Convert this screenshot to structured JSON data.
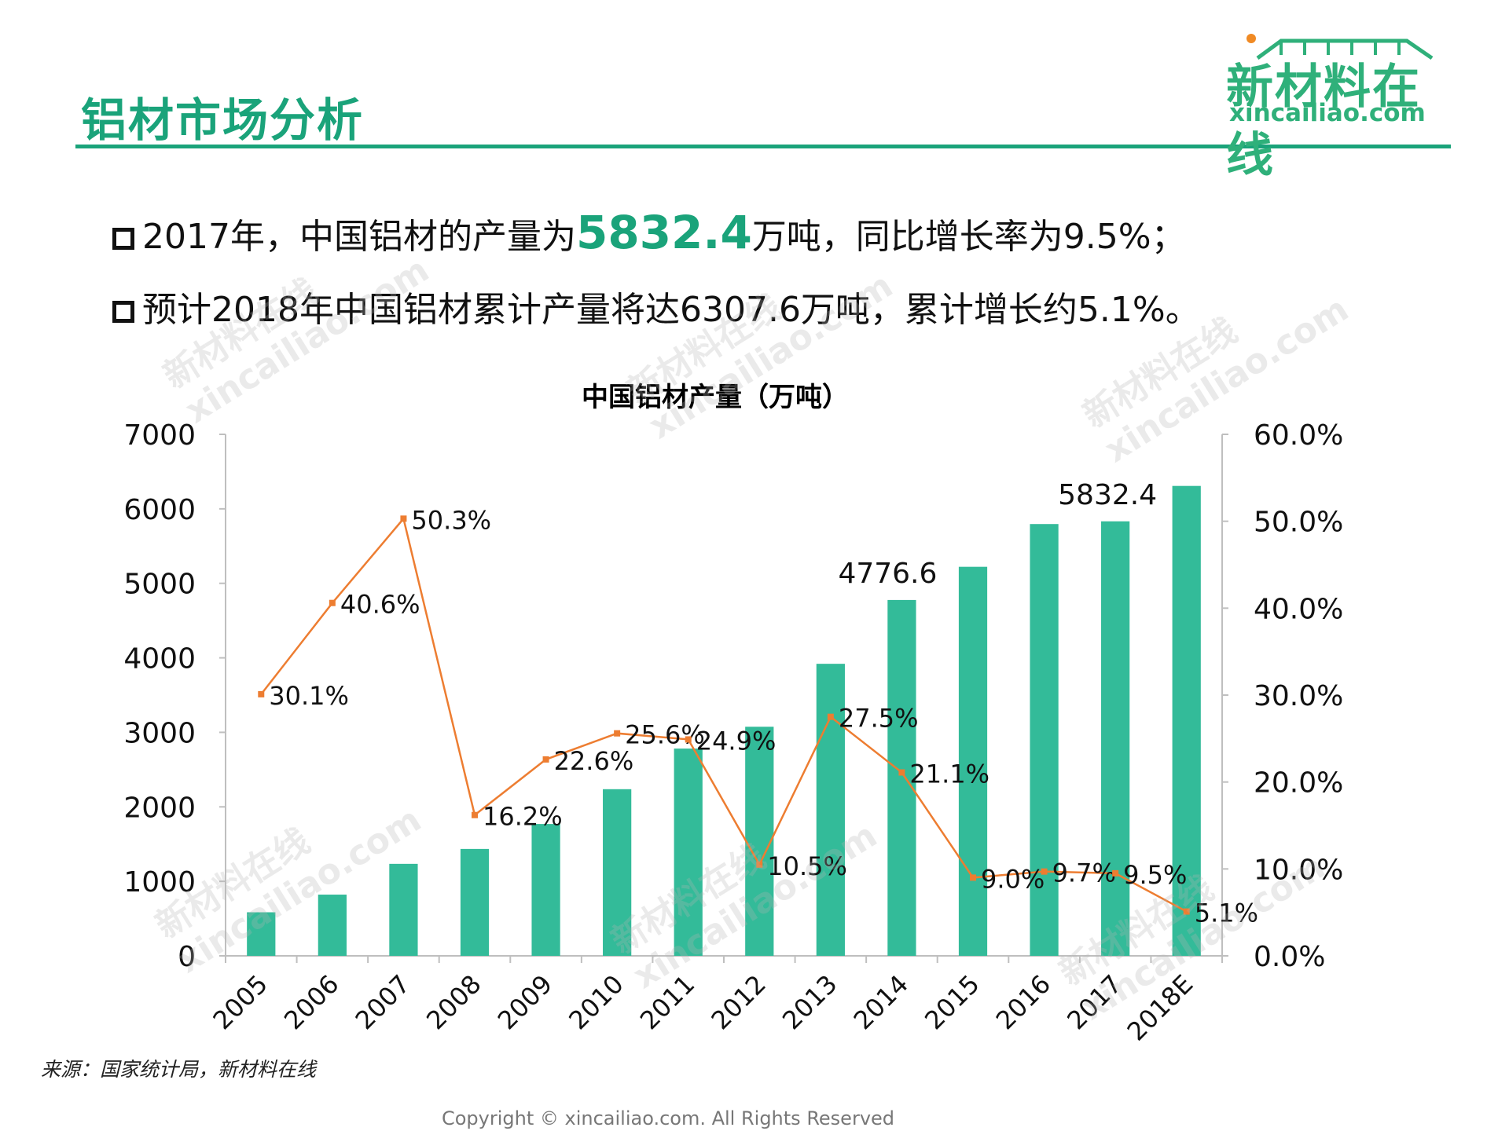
{
  "header": {
    "title": "铝材市场分析",
    "logo_name": "新材料在线",
    "logo_url": "xincailiao.com"
  },
  "bullets": [
    {
      "prefix": "2017年，中国铝材的产量为",
      "highlight": "5832.4",
      "suffix": "万吨，同比增长率为9.5%；"
    },
    {
      "prefix": "预计2018年中国铝材累计产量将达6307.6万吨，累计增长约5.1%。",
      "highlight": "",
      "suffix": ""
    }
  ],
  "watermark": {
    "line1": "新材料在线",
    "line2": "xincailiao.com"
  },
  "chart_data": {
    "type": "bar",
    "title": "中国铝材产量（万吨）",
    "categories": [
      "2005",
      "2006",
      "2007",
      "2008",
      "2009",
      "2010",
      "2011",
      "2012",
      "2013",
      "2014",
      "2015",
      "2016",
      "2017",
      "2018E"
    ],
    "series": [
      {
        "values": [
          585,
          822,
          1235,
          1435,
          1770,
          2237,
          2782,
          3075,
          3920,
          4776.6,
          5222,
          5796,
          5832.4,
          6307.6
        ],
        "labels": [
          "",
          "",
          "",
          "",
          "",
          "",
          "",
          "",
          "",
          "4776.6",
          "",
          "",
          "5832.4",
          ""
        ],
        "color": "#33bb99",
        "axis": "left"
      },
      {
        "type": "line",
        "values": [
          30.1,
          40.6,
          50.3,
          16.2,
          22.6,
          25.6,
          24.9,
          10.5,
          27.5,
          21.1,
          9.0,
          9.7,
          9.5,
          5.1
        ],
        "labels": [
          "30.1%",
          "40.6%",
          "50.3%",
          "16.2%",
          "22.6%",
          "25.6%",
          "24.9%",
          "10.5%",
          "27.5%",
          "21.1%",
          "9.0%",
          "9.7%",
          "9.5%",
          "5.1%"
        ],
        "color": "#ed7d31",
        "axis": "right"
      }
    ],
    "y_left": {
      "min": 0,
      "max": 7000,
      "ticks": [
        "0",
        "1000",
        "2000",
        "3000",
        "4000",
        "5000",
        "6000",
        "7000"
      ]
    },
    "y_right": {
      "min": 0,
      "max": 60,
      "ticks": [
        "0.0%",
        "10.0%",
        "20.0%",
        "30.0%",
        "40.0%",
        "50.0%",
        "60.0%"
      ]
    },
    "grid": false,
    "legend": "none"
  },
  "source": "来源：国家统计局，新材料在线",
  "copyright": "Copyright © xincailiao.com. All Rights Reserved"
}
